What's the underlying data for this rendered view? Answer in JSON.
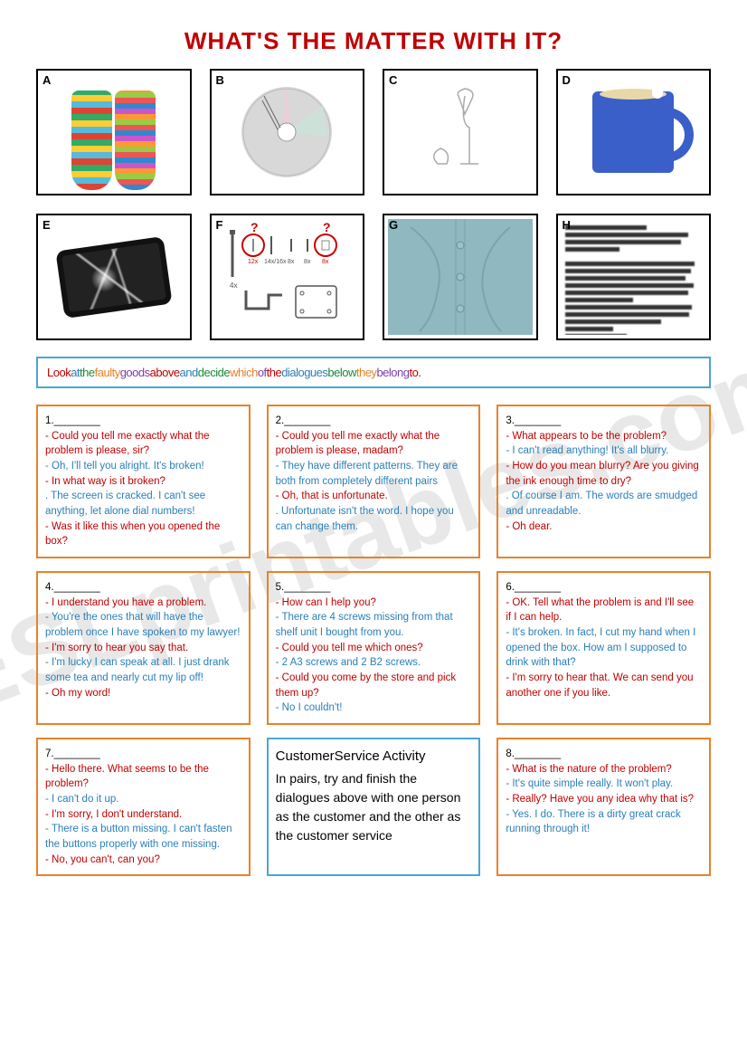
{
  "title": "WHAT'S THE MATTER WITH IT?",
  "watermark": "ESLprintables.com",
  "images": [
    {
      "letter": "A",
      "desc": "mismatched striped socks"
    },
    {
      "letter": "B",
      "desc": "cracked CD"
    },
    {
      "letter": "C",
      "desc": "broken wine glass"
    },
    {
      "letter": "D",
      "desc": "chipped blue mug"
    },
    {
      "letter": "E",
      "desc": "cracked smartphone screen"
    },
    {
      "letter": "F",
      "desc": "assembly parts with missing screws circled"
    },
    {
      "letter": "G",
      "desc": "shirt missing a button"
    },
    {
      "letter": "H",
      "desc": "blurry smudged printed text"
    }
  ],
  "instruction_words": [
    {
      "t": "Look",
      "c": "#c00000"
    },
    {
      "t": "at",
      "c": "#2a7fb8"
    },
    {
      "t": "the",
      "c": "#1a8a3a"
    },
    {
      "t": "faulty",
      "c": "#e8822a"
    },
    {
      "t": "goods",
      "c": "#7a3fa8"
    },
    {
      "t": "above",
      "c": "#c00000"
    },
    {
      "t": "and",
      "c": "#2a7fb8"
    },
    {
      "t": "decide",
      "c": "#1a8a3a"
    },
    {
      "t": "which",
      "c": "#e8822a"
    },
    {
      "t": "of",
      "c": "#7a3fa8"
    },
    {
      "t": "the",
      "c": "#c00000"
    },
    {
      "t": "dialogues",
      "c": "#2a7fb8"
    },
    {
      "t": "below",
      "c": "#1a8a3a"
    },
    {
      "t": "they",
      "c": "#e8822a"
    },
    {
      "t": "belong",
      "c": "#7a3fa8"
    },
    {
      "t": "to.",
      "c": "#c00000"
    }
  ],
  "dialogues": [
    {
      "num": "1.",
      "lines": [
        {
          "s": "a",
          "t": "- Could you tell me exactly what the problem is please, sir?"
        },
        {
          "s": "b",
          "t": "- Oh, I'll tell you alright. It's broken!"
        },
        {
          "s": "a",
          "t": "- In what way is it broken?"
        },
        {
          "s": "b",
          "t": ". The screen is cracked. I can't see anything, let alone dial numbers!"
        },
        {
          "s": "a",
          "t": "- Was it like this when you opened the box?"
        }
      ]
    },
    {
      "num": "2.",
      "lines": [
        {
          "s": "a",
          "t": "- Could you tell me exactly what the problem is please, madam?"
        },
        {
          "s": "b",
          "t": "- They have different patterns. They are both from completely different pairs"
        },
        {
          "s": "a",
          "t": "- Oh, that is unfortunate."
        },
        {
          "s": "b",
          "t": ". Unfortunate isn't the word. I hope you can change them."
        }
      ]
    },
    {
      "num": "3.",
      "lines": [
        {
          "s": "a",
          "t": "- What appears to be the problem?"
        },
        {
          "s": "b",
          "t": "- I can't read anything! It's all blurry."
        },
        {
          "s": "a",
          "t": "- How do you mean blurry? Are you giving the ink enough time to dry?"
        },
        {
          "s": "b",
          "t": ". Of course I am. The words are smudged and unreadable."
        },
        {
          "s": "a",
          "t": "- Oh dear."
        }
      ]
    },
    {
      "num": "4.",
      "lines": [
        {
          "s": "a",
          "t": "- I understand you have a problem."
        },
        {
          "s": "b",
          "t": "- You're the ones that will have the problem once I have spoken to my lawyer!"
        },
        {
          "s": "a",
          "t": "- I'm sorry to hear you say that."
        },
        {
          "s": "b",
          "t": "- I'm lucky I can speak at all. I just drank some tea and nearly cut my lip off!"
        },
        {
          "s": "a",
          "t": "- Oh my word!"
        }
      ]
    },
    {
      "num": "5.",
      "lines": [
        {
          "s": "a",
          "t": "- How can I help you?"
        },
        {
          "s": "b",
          "t": "- There are 4 screws missing from that shelf unit I bought from you."
        },
        {
          "s": "a",
          "t": "- Could you tell me which ones?"
        },
        {
          "s": "b",
          "t": "- 2 A3 screws and 2 B2 screws."
        },
        {
          "s": "a",
          "t": "- Could you come by the store and pick them up?"
        },
        {
          "s": "b",
          "t": "- No I couldn't!"
        }
      ]
    },
    {
      "num": "6.",
      "lines": [
        {
          "s": "a",
          "t": "- OK. Tell what the problem is and I'll see if I can help."
        },
        {
          "s": "b",
          "t": "- It's broken. In fact, I cut my hand when I opened the box. How am I supposed to drink with that?"
        },
        {
          "s": "a",
          "t": "- I'm sorry to hear that. We can send you another one if you like."
        }
      ]
    },
    {
      "num": "7.",
      "lines": [
        {
          "s": "a",
          "t": "- Hello there. What seems to be the problem?"
        },
        {
          "s": "b",
          "t": "- I can't do it up."
        },
        {
          "s": "a",
          "t": "- I'm sorry, I don't understand."
        },
        {
          "s": "b",
          "t": "- There is a button missing. I can't fasten the buttons properly with one missing."
        },
        {
          "s": "a",
          "t": "- No, you can't, can you?"
        }
      ]
    },
    {
      "activity": true,
      "title": "CustomerService Activity",
      "body": "In pairs, try and finish the dialogues above with one person as the customer and the other as the customer service"
    },
    {
      "num": "8.",
      "lines": [
        {
          "s": "a",
          "t": "- What is the nature of the problem?"
        },
        {
          "s": "b",
          "t": "- It's quite simple really. It won't play."
        },
        {
          "s": "a",
          "t": "- Really? Have you any idea why that is?"
        },
        {
          "s": "b",
          "t": "- Yes. I do. There is a dirty great crack running through it!"
        }
      ]
    }
  ],
  "colors": {
    "title": "#c00000",
    "dialogue_border": "#e8822a",
    "activity_border": "#4aa6d4",
    "speaker_a": "#c00000",
    "speaker_b": "#2a7fb8"
  }
}
